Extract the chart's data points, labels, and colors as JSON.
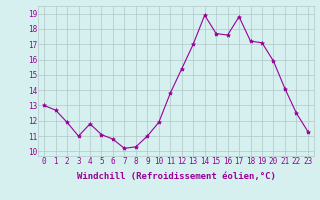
{
  "x": [
    0,
    1,
    2,
    3,
    4,
    5,
    6,
    7,
    8,
    9,
    10,
    11,
    12,
    13,
    14,
    15,
    16,
    17,
    18,
    19,
    20,
    21,
    22,
    23
  ],
  "y": [
    13.0,
    12.7,
    11.9,
    11.0,
    11.8,
    11.1,
    10.8,
    10.2,
    10.3,
    11.0,
    11.9,
    13.8,
    15.4,
    17.0,
    18.9,
    17.7,
    17.6,
    18.8,
    17.2,
    17.1,
    15.9,
    14.1,
    12.5,
    11.3
  ],
  "line_color": "#990099",
  "marker": "*",
  "marker_size": 3,
  "bg_color": "#d6f0ef",
  "grid_color": "#b0c8c8",
  "ylabel_vals": [
    10,
    11,
    12,
    13,
    14,
    15,
    16,
    17,
    18,
    19
  ],
  "xlabel": "Windchill (Refroidissement éolien,°C)",
  "ylim": [
    9.7,
    19.5
  ],
  "xlim": [
    -0.5,
    23.5
  ],
  "tick_fontsize": 5.5,
  "xlabel_fontsize": 6.5
}
